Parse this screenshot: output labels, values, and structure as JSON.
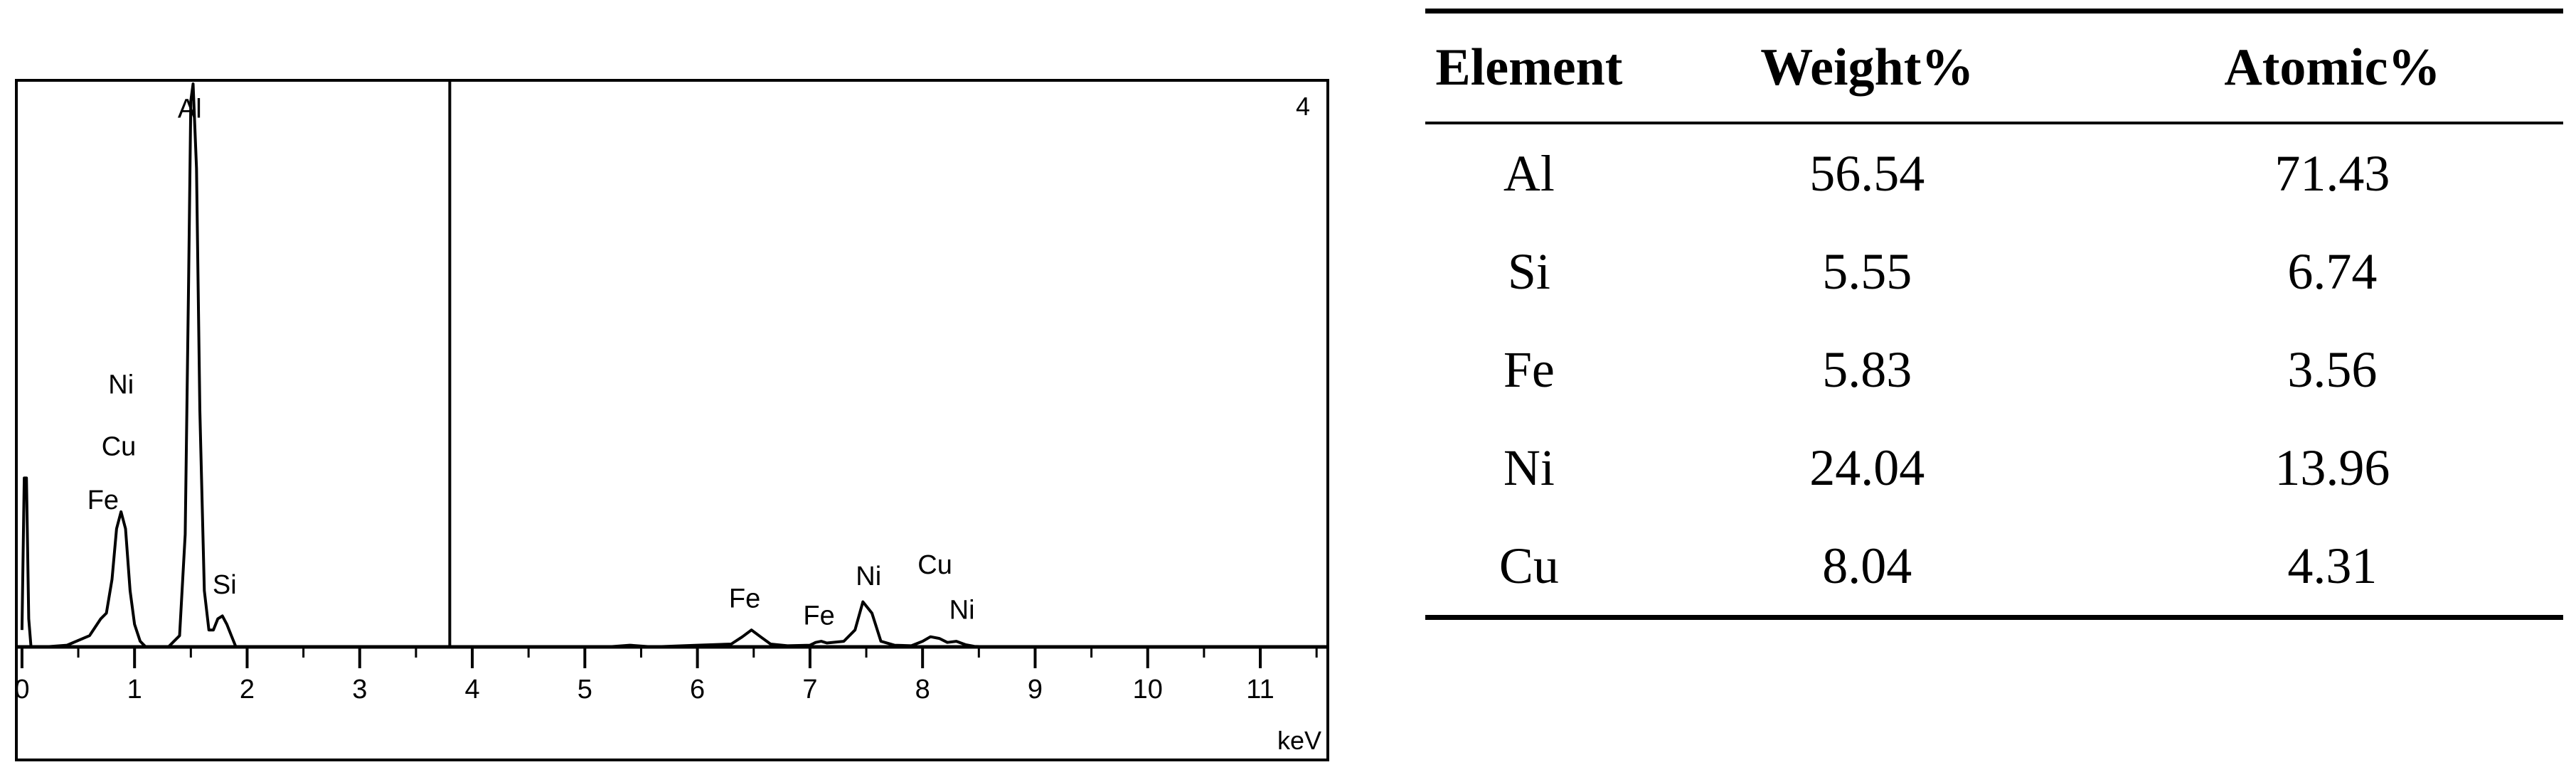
{
  "chart_data": {
    "type": "line",
    "title": "",
    "xlabel": "keV",
    "ylabel": "",
    "panel_number": "4",
    "xlim": [
      -0.05,
      11.6
    ],
    "ylim": [
      0,
      1.0
    ],
    "x_ticks": [
      0,
      1,
      2,
      3,
      4,
      5,
      6,
      7,
      8,
      9,
      10,
      11
    ],
    "cursor_marker_kev": 3.8,
    "grid": false,
    "series": [
      {
        "x": [
          0,
          0.02,
          0.04,
          0.06,
          0.08,
          0.12,
          0.2,
          0.4,
          0.6,
          0.7,
          0.75,
          0.8,
          0.84,
          0.88,
          0.92,
          0.96,
          1.0,
          1.05,
          1.1,
          1.2,
          1.3,
          1.4,
          1.45,
          1.48,
          1.5,
          1.52,
          1.55,
          1.58,
          1.62,
          1.66,
          1.7,
          1.74,
          1.78,
          1.82,
          1.86,
          1.9,
          2.0,
          2.5,
          3.0,
          3.8,
          4.5,
          5.2,
          5.4,
          5.6,
          6.0,
          6.3,
          6.4,
          6.48,
          6.56,
          6.65,
          6.8,
          7.0,
          7.05,
          7.1,
          7.15,
          7.3,
          7.4,
          7.47,
          7.55,
          7.63,
          7.75,
          7.9,
          8.0,
          8.07,
          8.15,
          8.22,
          8.3,
          8.38,
          8.46,
          8.6,
          9.0,
          10.0,
          11.0,
          11.6
        ],
        "y": [
          0.03,
          0.3,
          0.3,
          0.05,
          0.0,
          0.0,
          0.0,
          0.003,
          0.02,
          0.05,
          0.06,
          0.12,
          0.21,
          0.24,
          0.21,
          0.1,
          0.04,
          0.01,
          0.0,
          0.0,
          0.0,
          0.02,
          0.2,
          0.65,
          0.97,
          1.0,
          0.85,
          0.42,
          0.1,
          0.03,
          0.03,
          0.05,
          0.055,
          0.04,
          0.02,
          0.0,
          0.0,
          0.0,
          0.0,
          0.0,
          0.0,
          0.0,
          0.003,
          0.0,
          0.003,
          0.005,
          0.018,
          0.03,
          0.018,
          0.005,
          0.002,
          0.003,
          0.008,
          0.01,
          0.007,
          0.01,
          0.03,
          0.08,
          0.06,
          0.01,
          0.003,
          0.002,
          0.01,
          0.018,
          0.015,
          0.008,
          0.01,
          0.004,
          0.001,
          0.0,
          0.0,
          0.0,
          0.0,
          0.0
        ]
      }
    ],
    "annotations": [
      {
        "text": "Al",
        "x": 1.49,
        "y": 0.94
      },
      {
        "text": "Ni",
        "x": 0.88,
        "y": 0.45
      },
      {
        "text": "Cu",
        "x": 0.86,
        "y": 0.34
      },
      {
        "text": "Fe",
        "x": 0.72,
        "y": 0.245
      },
      {
        "text": "Si",
        "x": 1.8,
        "y": 0.095
      },
      {
        "text": "Fe",
        "x": 6.42,
        "y": 0.07
      },
      {
        "text": "Fe",
        "x": 7.08,
        "y": 0.04
      },
      {
        "text": "Ni",
        "x": 7.52,
        "y": 0.11
      },
      {
        "text": "Cu",
        "x": 8.11,
        "y": 0.13
      },
      {
        "text": "Ni",
        "x": 8.35,
        "y": 0.05
      }
    ]
  },
  "table": {
    "headers": [
      "Element",
      "Weight%",
      "Atomic%"
    ],
    "rows": [
      [
        "Al",
        "56.54",
        "71.43"
      ],
      [
        "Si",
        "5.55",
        "6.74"
      ],
      [
        "Fe",
        "5.83",
        "3.56"
      ],
      [
        "Ni",
        "24.04",
        "13.96"
      ],
      [
        "Cu",
        "8.04",
        "4.31"
      ]
    ]
  }
}
